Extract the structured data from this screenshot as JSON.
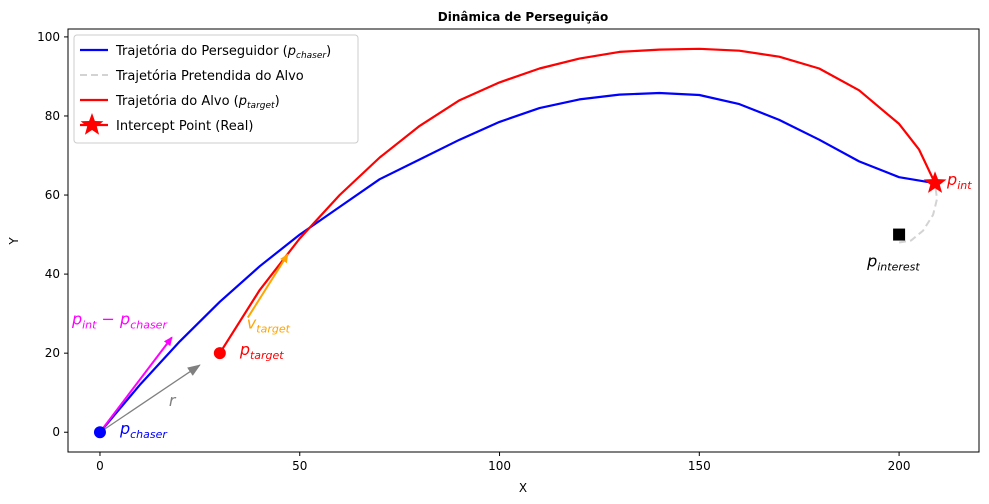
{
  "chart_data": {
    "type": "line",
    "title": "Dinâmica de Perseguição",
    "xlabel": "X",
    "ylabel": "Y",
    "xlim": [
      -8,
      220
    ],
    "ylim": [
      -5,
      102
    ],
    "xticks": [
      0,
      50,
      100,
      150,
      200
    ],
    "yticks": [
      0,
      20,
      40,
      60,
      80,
      100
    ],
    "grid": false,
    "legend_position": "top-left",
    "colors": {
      "chaser": "#0000ff",
      "target": "#ff0000",
      "intended": "#d3d3d3",
      "intercept": "#ff0000",
      "rel_vector": "#ff00ff",
      "velocity": "#ffa500",
      "r_vector": "#808080",
      "interest": "#000000"
    },
    "series": [
      {
        "name": "Trajetória do Perseguidor (",
        "name_sub": "chaser",
        "name_suffix": ")",
        "style": "solid",
        "x": [
          0,
          10,
          20,
          30,
          40,
          50,
          60,
          70,
          80,
          90,
          100,
          110,
          120,
          130,
          140,
          150,
          160,
          170,
          180,
          190,
          200,
          209
        ],
        "y": [
          0,
          12,
          23,
          33,
          42,
          50,
          57,
          64,
          69,
          74,
          78.5,
          82,
          84.2,
          85.4,
          85.8,
          85.3,
          83,
          79,
          74,
          68.5,
          64.5,
          63
        ]
      },
      {
        "name": "Trajetória Pretendida do Alvo",
        "style": "dashed",
        "x": [
          200,
          203,
          206,
          208.5,
          209.5,
          209
        ],
        "y": [
          48,
          48.5,
          51,
          55,
          59,
          63
        ]
      },
      {
        "name": "Trajetória do Alvo (",
        "name_sub": "target",
        "name_suffix": ")",
        "style": "solid",
        "x": [
          30,
          40,
          50,
          60,
          70,
          80,
          90,
          100,
          110,
          120,
          130,
          140,
          150,
          160,
          170,
          180,
          190,
          200,
          205,
          209
        ],
        "y": [
          20,
          36,
          49,
          60,
          69.5,
          77.5,
          84,
          88.5,
          92,
          94.5,
          96.2,
          96.8,
          97,
          96.5,
          95,
          92,
          86.5,
          78,
          71.5,
          63
        ]
      }
    ],
    "points": {
      "chaser": {
        "x": 0,
        "y": 0
      },
      "target": {
        "x": 30,
        "y": 20
      },
      "intercept": {
        "x": 209,
        "y": 63
      },
      "interest": {
        "x": 200,
        "y": 50
      }
    },
    "vectors": {
      "rel": {
        "from": [
          0,
          0
        ],
        "to": [
          18,
          24
        ]
      },
      "velocity": {
        "from": [
          37,
          29
        ],
        "to": [
          47,
          45
        ]
      },
      "r": {
        "from": [
          0,
          0
        ],
        "to": [
          25,
          17
        ]
      }
    },
    "legend": [
      {
        "label": "Trajetória do Perseguidor (",
        "sub": "chaser",
        "suffix": ")",
        "kind": "line",
        "color": "#0000ff"
      },
      {
        "label": "Trajetória Pretendida do Alvo",
        "sub": "",
        "suffix": "",
        "kind": "dashed",
        "color": "#d3d3d3"
      },
      {
        "label": "Trajetória do Alvo (",
        "sub": "target",
        "suffix": ")",
        "kind": "line",
        "color": "#ff0000"
      },
      {
        "label": "Intercept Point (Real)",
        "sub": "",
        "suffix": "",
        "kind": "star",
        "color": "#ff0000"
      }
    ],
    "annotations": {
      "chaser": {
        "base": "p",
        "sub": "chaser"
      },
      "target": {
        "base": "p",
        "sub": "target"
      },
      "intercept": {
        "base": "p",
        "sub": "int"
      },
      "interest": {
        "base": "p",
        "sub": "interest"
      },
      "velocity": {
        "base": "v",
        "sub": "target"
      },
      "r": {
        "base": "r",
        "sub": ""
      },
      "rel": {
        "base": "p",
        "sub": "int",
        "mid": " − p",
        "sub2": "chaser"
      }
    }
  }
}
